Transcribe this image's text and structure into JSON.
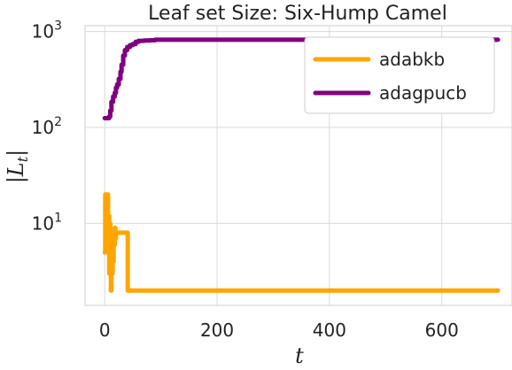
{
  "chart_data": {
    "type": "line",
    "title": "Leaf set Size: Six-Hump Camel",
    "xlabel": "t",
    "ylabel": "|L_t|",
    "yscale": "log",
    "xlim": [
      -35,
      725
    ],
    "ylim": [
      1.4,
      1150
    ],
    "x_ticks": [
      0,
      200,
      400,
      600
    ],
    "x_tick_labels": [
      "0",
      "200",
      "400",
      "600"
    ],
    "y_ticks": [
      10,
      100,
      1000
    ],
    "y_tick_labels": [
      {
        "base": "10",
        "exp": "1"
      },
      {
        "base": "10",
        "exp": "2"
      },
      {
        "base": "10",
        "exp": "3"
      }
    ],
    "grid": true,
    "legend_position": "top-right",
    "series": [
      {
        "name": "adabkb",
        "color": "#FFA500",
        "points": [
          [
            0,
            5
          ],
          [
            1,
            20
          ],
          [
            2,
            6
          ],
          [
            3,
            20
          ],
          [
            4,
            8
          ],
          [
            5,
            20
          ],
          [
            6,
            6
          ],
          [
            7,
            12
          ],
          [
            8,
            3
          ],
          [
            9,
            10
          ],
          [
            10,
            4
          ],
          [
            11,
            2
          ],
          [
            12,
            8
          ],
          [
            13,
            3
          ],
          [
            14,
            6
          ],
          [
            15,
            4
          ],
          [
            16,
            8
          ],
          [
            17,
            6
          ],
          [
            18,
            9
          ],
          [
            19,
            7
          ],
          [
            20,
            8
          ],
          [
            25,
            8
          ],
          [
            30,
            8
          ],
          [
            35,
            8
          ],
          [
            40,
            8
          ],
          [
            41,
            2
          ],
          [
            50,
            2
          ],
          [
            100,
            2
          ],
          [
            200,
            2
          ],
          [
            300,
            2
          ],
          [
            400,
            2
          ],
          [
            500,
            2
          ],
          [
            600,
            2
          ],
          [
            700,
            2
          ]
        ]
      },
      {
        "name": "adagpucb",
        "color": "#800080",
        "points": [
          [
            0,
            125
          ],
          [
            5,
            125
          ],
          [
            8,
            130
          ],
          [
            10,
            150
          ],
          [
            12,
            185
          ],
          [
            15,
            210
          ],
          [
            18,
            230
          ],
          [
            20,
            260
          ],
          [
            22,
            280
          ],
          [
            25,
            320
          ],
          [
            28,
            380
          ],
          [
            30,
            450
          ],
          [
            33,
            560
          ],
          [
            36,
            640
          ],
          [
            40,
            690
          ],
          [
            45,
            720
          ],
          [
            50,
            740
          ],
          [
            55,
            780
          ],
          [
            60,
            800
          ],
          [
            70,
            805
          ],
          [
            80,
            810
          ],
          [
            90,
            820
          ],
          [
            100,
            820
          ],
          [
            150,
            820
          ],
          [
            200,
            820
          ],
          [
            300,
            820
          ],
          [
            400,
            820
          ],
          [
            500,
            820
          ],
          [
            600,
            820
          ],
          [
            700,
            820
          ]
        ]
      }
    ]
  }
}
